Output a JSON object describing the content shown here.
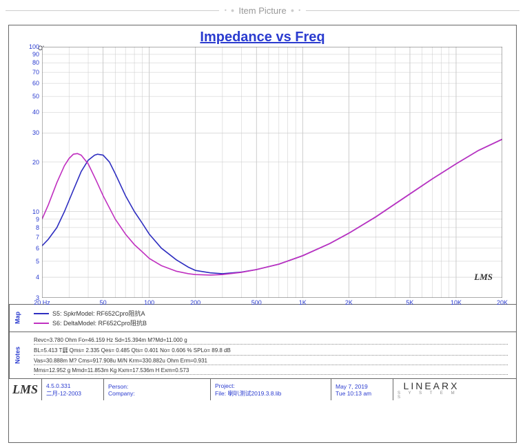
{
  "header": {
    "label": "Item Picture"
  },
  "chart": {
    "type": "line",
    "title": "Impedance vs Freq",
    "title_color": "#2a3bcf",
    "title_fontsize": 20,
    "y_axis_label": "Ohm",
    "x_axis_unit": "Hz",
    "x_scale": "log",
    "y_scale": "log",
    "xlim": [
      20,
      20000
    ],
    "ylim": [
      3,
      100
    ],
    "x_ticks": [
      {
        "v": 20,
        "label": "20"
      },
      {
        "v": 50,
        "label": "50"
      },
      {
        "v": 100,
        "label": "100"
      },
      {
        "v": 200,
        "label": "200"
      },
      {
        "v": 500,
        "label": "500"
      },
      {
        "v": 1000,
        "label": "1K"
      },
      {
        "v": 2000,
        "label": "2K"
      },
      {
        "v": 5000,
        "label": "5K"
      },
      {
        "v": 10000,
        "label": "10K"
      },
      {
        "v": 20000,
        "label": "20K"
      }
    ],
    "y_ticks": [
      {
        "v": 3,
        "label": "3"
      },
      {
        "v": 4,
        "label": "4"
      },
      {
        "v": 5,
        "label": "5"
      },
      {
        "v": 6,
        "label": "6"
      },
      {
        "v": 7,
        "label": "7"
      },
      {
        "v": 8,
        "label": "8"
      },
      {
        "v": 9,
        "label": "9"
      },
      {
        "v": 10,
        "label": "10"
      },
      {
        "v": 20,
        "label": "20"
      },
      {
        "v": 30,
        "label": "30"
      },
      {
        "v": 40,
        "label": "40"
      },
      {
        "v": 50,
        "label": "50"
      },
      {
        "v": 60,
        "label": "60"
      },
      {
        "v": 70,
        "label": "70"
      },
      {
        "v": 80,
        "label": "80"
      },
      {
        "v": 90,
        "label": "90"
      },
      {
        "v": 100,
        "label": "100"
      }
    ],
    "grid_minor_x": [
      30,
      40,
      60,
      70,
      80,
      90,
      300,
      400,
      600,
      700,
      800,
      900,
      3000,
      4000,
      6000,
      7000,
      8000,
      9000
    ],
    "grid_color": "#c8c8c8",
    "border_color": "#666666",
    "background_color": "#ffffff",
    "signature": "LMS",
    "line_width": 1.6,
    "series": [
      {
        "name": "S5",
        "label": "S5: SpkrModel: RF652Cpro阻抗A",
        "color": "#2e2ec0",
        "points": [
          [
            20,
            6.2
          ],
          [
            22,
            6.8
          ],
          [
            25,
            8.0
          ],
          [
            28,
            10.0
          ],
          [
            32,
            13.5
          ],
          [
            36,
            17.5
          ],
          [
            40,
            20.5
          ],
          [
            44,
            22.0
          ],
          [
            46,
            22.3
          ],
          [
            50,
            22.0
          ],
          [
            55,
            20.0
          ],
          [
            60,
            17.0
          ],
          [
            70,
            12.5
          ],
          [
            80,
            10.0
          ],
          [
            90,
            8.5
          ],
          [
            100,
            7.3
          ],
          [
            120,
            6.0
          ],
          [
            150,
            5.1
          ],
          [
            180,
            4.6
          ],
          [
            200,
            4.4
          ],
          [
            250,
            4.25
          ],
          [
            300,
            4.2
          ],
          [
            400,
            4.3
          ],
          [
            500,
            4.45
          ],
          [
            700,
            4.8
          ],
          [
            1000,
            5.4
          ],
          [
            1500,
            6.4
          ],
          [
            2000,
            7.4
          ],
          [
            3000,
            9.3
          ],
          [
            5000,
            12.8
          ],
          [
            7000,
            15.8
          ],
          [
            10000,
            19.5
          ],
          [
            14000,
            23.5
          ],
          [
            20000,
            27.5
          ]
        ]
      },
      {
        "name": "S6",
        "label": "S6: DeltaModel: RF652Cpro阻抗B",
        "color": "#c030c0",
        "points": [
          [
            20,
            9.0
          ],
          [
            22,
            11.0
          ],
          [
            25,
            15.0
          ],
          [
            28,
            19.0
          ],
          [
            30,
            21.0
          ],
          [
            32,
            22.3
          ],
          [
            34,
            22.5
          ],
          [
            36,
            22.0
          ],
          [
            40,
            19.5
          ],
          [
            45,
            15.5
          ],
          [
            50,
            12.5
          ],
          [
            60,
            9.0
          ],
          [
            70,
            7.3
          ],
          [
            80,
            6.3
          ],
          [
            90,
            5.7
          ],
          [
            100,
            5.2
          ],
          [
            120,
            4.7
          ],
          [
            150,
            4.35
          ],
          [
            180,
            4.2
          ],
          [
            200,
            4.15
          ],
          [
            250,
            4.12
          ],
          [
            300,
            4.15
          ],
          [
            400,
            4.28
          ],
          [
            500,
            4.45
          ],
          [
            700,
            4.8
          ],
          [
            1000,
            5.4
          ],
          [
            1500,
            6.4
          ],
          [
            2000,
            7.4
          ],
          [
            3000,
            9.3
          ],
          [
            5000,
            12.8
          ],
          [
            7000,
            15.8
          ],
          [
            10000,
            19.5
          ],
          [
            14000,
            23.5
          ],
          [
            20000,
            27.5
          ]
        ]
      }
    ]
  },
  "map": {
    "tab": "Map"
  },
  "notes": {
    "tab": "Notes",
    "lines": [
      "Revc=3.780 Ohm  Fo=46.159 Hz  Sd=15.394m M?Md=11.000 g",
      "BL=5.413 T瓥  Qms= 2.335  Qes= 0.485  Qts= 0.401  No= 0.606 %  SPLo= 89.8 dB",
      "Vas=30.888m M? Cms=917.908u M/N  Krm=330.882u Ohm  Erm=0.931",
      "Mms=12.952 g  Mmd=11.853m Kg  Kxm=17.536m H  Exm=0.573"
    ]
  },
  "footer": {
    "logo": "LMS",
    "version": "4.5.0.331",
    "date_secondary": "二月-12-2003",
    "person_label": "Person:",
    "company_label": "Company:",
    "project_label": "Project:",
    "file_label": "File:",
    "file_value": "喇叭测试2019.3.8.lib",
    "date": "May  7, 2019",
    "time": "Tue 10:13 am",
    "brand": "LINEARX",
    "brand_sub": "S Y S T E M S"
  }
}
